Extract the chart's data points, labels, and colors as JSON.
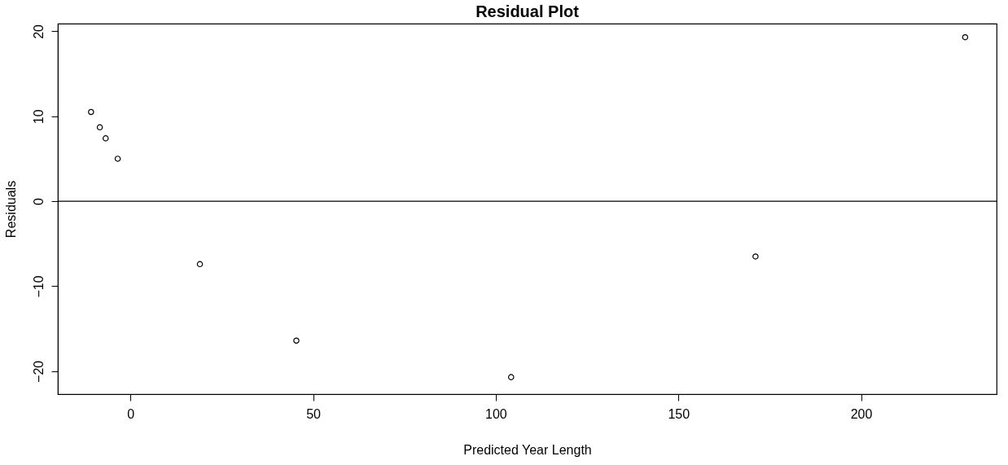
{
  "chart_data": {
    "type": "scatter",
    "title": "Residual Plot",
    "xlabel": "Predicted Year Length",
    "ylabel": "Residuals",
    "x": [
      -10.8,
      -8.4,
      -6.8,
      -3.5,
      19.0,
      45.4,
      104.2,
      171.1,
      228.5
    ],
    "series": [
      {
        "color": "#000000",
        "values": [
          10.5,
          8.7,
          7.4,
          5.0,
          -7.4,
          -16.4,
          -20.7,
          -6.5,
          19.3
        ]
      }
    ],
    "xlim": [
      -19.9,
      237.1
    ],
    "xticks": [
      0,
      50,
      100,
      150,
      200
    ],
    "ylim": [
      -22.7,
      20.9
    ],
    "yticks": [
      -20,
      -10,
      0,
      10,
      20
    ],
    "ref_lines": [
      {
        "axis": "y",
        "value": 0,
        "label": null,
        "color": "#000000"
      }
    ],
    "marker": "circle",
    "grid": false
  }
}
